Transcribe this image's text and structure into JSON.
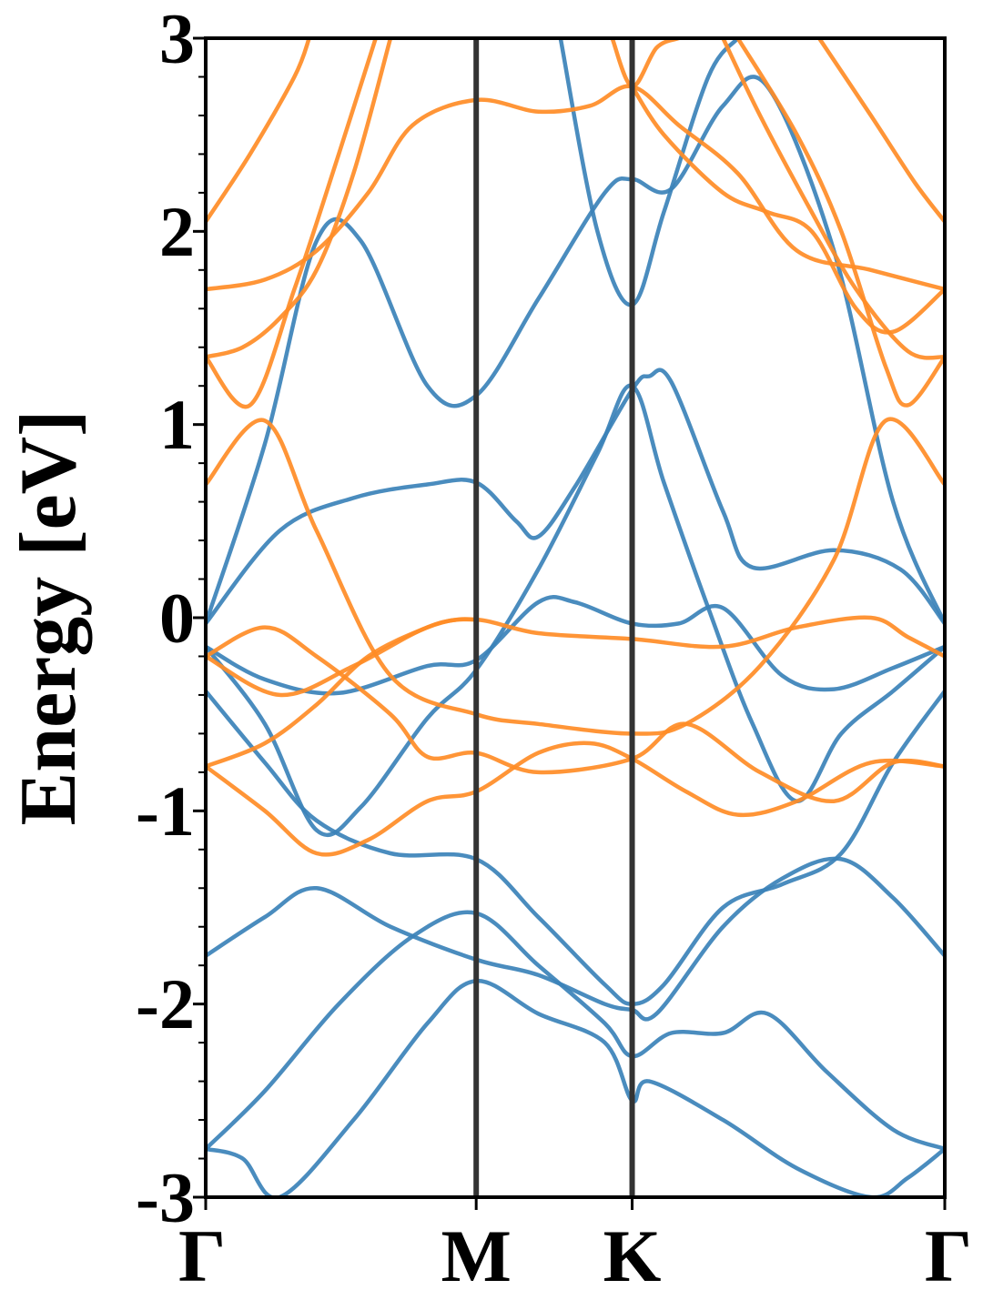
{
  "chart_data": {
    "type": "line",
    "title": "",
    "ylabel": "Energy [eV]",
    "xlabel": "",
    "ylim": [
      -3,
      3
    ],
    "yticks": [
      -3,
      -2,
      -1,
      0,
      1,
      2,
      3
    ],
    "ytick_labels": [
      "-3",
      "-2",
      "-1",
      "0",
      "1",
      "2",
      "3"
    ],
    "xlim": [
      0,
      1
    ],
    "high_symmetry_points": [
      {
        "label": "Γ",
        "x": 0.0
      },
      {
        "label": "M",
        "x": 0.366
      },
      {
        "label": "K",
        "x": 0.577
      },
      {
        "label": "Γ",
        "x": 1.0
      }
    ],
    "grid": false,
    "legend": "none",
    "colors": {
      "series_a": "#3b82b9",
      "series_b": "#ff8c26",
      "divider": "#333333"
    },
    "series": [
      {
        "color": "#3b82b9",
        "bands": [
          [
            [
              0,
              -0.03
            ],
            [
              0.08,
              0.9
            ],
            [
              0.15,
              1.95
            ],
            [
              0.21,
              1.95
            ],
            [
              0.3,
              1.2
            ],
            [
              0.366,
              1.15
            ],
            [
              0.45,
              1.65
            ],
            [
              0.54,
              2.2
            ],
            [
              0.577,
              2.27
            ],
            [
              0.63,
              2.22
            ],
            [
              0.7,
              2.65
            ],
            [
              0.76,
              2.75
            ],
            [
              0.85,
              1.9
            ],
            [
              0.93,
              0.6
            ],
            [
              1.0,
              -0.03
            ]
          ],
          [
            [
              0,
              -0.03
            ],
            [
              0.1,
              0.45
            ],
            [
              0.2,
              0.62
            ],
            [
              0.3,
              0.69
            ],
            [
              0.366,
              0.7
            ],
            [
              0.42,
              0.5
            ],
            [
              0.45,
              0.42
            ],
            [
              0.5,
              0.68
            ],
            [
              0.577,
              1.18
            ],
            [
              0.6,
              1.25
            ],
            [
              0.63,
              1.22
            ],
            [
              0.7,
              0.55
            ],
            [
              0.74,
              0.26
            ],
            [
              0.85,
              0.35
            ],
            [
              0.94,
              0.25
            ],
            [
              1.0,
              -0.03
            ]
          ],
          [
            [
              0,
              -0.15
            ],
            [
              0.08,
              -0.32
            ],
            [
              0.18,
              -0.39
            ],
            [
              0.3,
              -0.25
            ],
            [
              0.366,
              -0.22
            ],
            [
              0.45,
              0.08
            ],
            [
              0.5,
              0.08
            ],
            [
              0.577,
              -0.03
            ],
            [
              0.64,
              -0.03
            ],
            [
              0.7,
              0.05
            ],
            [
              0.78,
              -0.3
            ],
            [
              0.85,
              -0.37
            ],
            [
              0.93,
              -0.26
            ],
            [
              1.0,
              -0.15
            ]
          ],
          [
            [
              0,
              -0.15
            ],
            [
              0.08,
              -0.55
            ],
            [
              0.15,
              -1.1
            ],
            [
              0.21,
              -0.98
            ],
            [
              0.3,
              -0.52
            ],
            [
              0.366,
              -0.27
            ],
            [
              0.45,
              0.25
            ],
            [
              0.53,
              0.85
            ],
            [
              0.577,
              1.2
            ],
            [
              0.62,
              0.7
            ],
            [
              0.68,
              0.05
            ],
            [
              0.74,
              -0.55
            ],
            [
              0.8,
              -0.95
            ],
            [
              0.86,
              -0.6
            ],
            [
              0.93,
              -0.38
            ],
            [
              1.0,
              -0.15
            ]
          ],
          [
            [
              0,
              -0.38
            ],
            [
              0.08,
              -0.75
            ],
            [
              0.15,
              -1.05
            ],
            [
              0.25,
              -1.22
            ],
            [
              0.366,
              -1.25
            ],
            [
              0.45,
              -1.55
            ],
            [
              0.54,
              -1.9
            ],
            [
              0.577,
              -2.0
            ],
            [
              0.62,
              -1.9
            ],
            [
              0.7,
              -1.5
            ],
            [
              0.78,
              -1.38
            ],
            [
              0.86,
              -1.22
            ],
            [
              0.93,
              -0.75
            ],
            [
              1.0,
              -0.38
            ]
          ],
          [
            [
              0,
              -1.75
            ],
            [
              0.08,
              -1.55
            ],
            [
              0.15,
              -1.4
            ],
            [
              0.25,
              -1.6
            ],
            [
              0.366,
              -1.77
            ],
            [
              0.45,
              -1.85
            ],
            [
              0.54,
              -2.0
            ],
            [
              0.577,
              -2.03
            ],
            [
              0.61,
              -2.05
            ],
            [
              0.7,
              -1.6
            ],
            [
              0.78,
              -1.35
            ],
            [
              0.86,
              -1.25
            ],
            [
              0.93,
              -1.45
            ],
            [
              1.0,
              -1.75
            ]
          ],
          [
            [
              0,
              -2.75
            ],
            [
              0.08,
              -2.45
            ],
            [
              0.18,
              -2.0
            ],
            [
              0.28,
              -1.65
            ],
            [
              0.366,
              -1.53
            ],
            [
              0.45,
              -1.8
            ],
            [
              0.54,
              -2.1
            ],
            [
              0.577,
              -2.27
            ],
            [
              0.63,
              -2.15
            ],
            [
              0.7,
              -2.15
            ],
            [
              0.76,
              -2.05
            ],
            [
              0.84,
              -2.35
            ],
            [
              0.93,
              -2.65
            ],
            [
              1.0,
              -2.75
            ]
          ],
          [
            [
              0,
              -2.75
            ],
            [
              0.05,
              -2.8
            ],
            [
              0.1,
              -3.0
            ],
            [
              0.2,
              -2.6
            ],
            [
              0.3,
              -2.1
            ],
            [
              0.366,
              -1.88
            ],
            [
              0.45,
              -2.05
            ],
            [
              0.54,
              -2.2
            ],
            [
              0.577,
              -2.5
            ],
            [
              0.6,
              -2.4
            ],
            [
              0.7,
              -2.6
            ],
            [
              0.8,
              -2.85
            ],
            [
              0.9,
              -3.0
            ],
            [
              0.95,
              -2.9
            ],
            [
              1.0,
              -2.75
            ]
          ],
          [
            [
              0.48,
              3.0
            ],
            [
              0.53,
              2.0
            ],
            [
              0.577,
              1.62
            ],
            [
              0.62,
              2.1
            ],
            [
              0.68,
              2.8
            ],
            [
              0.72,
              3.0
            ]
          ]
        ]
      },
      {
        "color": "#ff8c26",
        "bands": [
          [
            [
              0,
              2.05
            ],
            [
              0.06,
              2.4
            ],
            [
              0.12,
              2.8
            ],
            [
              0.14,
              3.0
            ]
          ],
          [
            [
              0,
              1.7
            ],
            [
              0.08,
              1.75
            ],
            [
              0.15,
              1.9
            ],
            [
              0.22,
              2.2
            ],
            [
              0.28,
              2.55
            ],
            [
              0.366,
              2.68
            ],
            [
              0.45,
              2.62
            ],
            [
              0.52,
              2.65
            ],
            [
              0.577,
              2.75
            ],
            [
              0.64,
              2.55
            ],
            [
              0.72,
              2.3
            ],
            [
              0.8,
              1.9
            ],
            [
              0.9,
              1.8
            ],
            [
              1.0,
              1.7
            ]
          ],
          [
            [
              0,
              1.35
            ],
            [
              0.05,
              1.4
            ],
            [
              0.1,
              1.55
            ],
            [
              0.15,
              1.8
            ],
            [
              0.2,
              2.3
            ],
            [
              0.25,
              3.0
            ]
          ],
          [
            [
              0,
              1.35
            ],
            [
              0.06,
              1.1
            ],
            [
              0.12,
              1.7
            ],
            [
              0.18,
              2.4
            ],
            [
              0.23,
              3.0
            ]
          ],
          [
            [
              0,
              0.69
            ],
            [
              0.08,
              1.02
            ],
            [
              0.15,
              0.45
            ],
            [
              0.25,
              -0.3
            ],
            [
              0.366,
              -0.5
            ],
            [
              0.45,
              -0.55
            ],
            [
              0.577,
              -0.6
            ],
            [
              0.65,
              -0.55
            ],
            [
              0.75,
              -0.25
            ],
            [
              0.85,
              0.3
            ],
            [
              0.92,
              1.02
            ],
            [
              1.0,
              0.69
            ]
          ],
          [
            [
              0,
              -0.2
            ],
            [
              0.08,
              -0.05
            ],
            [
              0.15,
              -0.2
            ],
            [
              0.25,
              -0.5
            ],
            [
              0.3,
              -0.72
            ],
            [
              0.366,
              -0.7
            ],
            [
              0.45,
              -0.8
            ],
            [
              0.577,
              -0.73
            ],
            [
              0.65,
              -0.55
            ],
            [
              0.75,
              -0.8
            ],
            [
              0.85,
              -0.95
            ],
            [
              0.93,
              -0.75
            ],
            [
              1.0,
              -0.77
            ]
          ],
          [
            [
              0,
              -0.2
            ],
            [
              0.1,
              -0.4
            ],
            [
              0.2,
              -0.25
            ],
            [
              0.3,
              -0.05
            ],
            [
              0.366,
              -0.01
            ],
            [
              0.45,
              -0.08
            ],
            [
              0.577,
              -0.11
            ],
            [
              0.7,
              -0.15
            ],
            [
              0.8,
              -0.05
            ],
            [
              0.9,
              0.0
            ],
            [
              0.95,
              -0.1
            ],
            [
              1.0,
              -0.2
            ]
          ],
          [
            [
              0,
              -0.77
            ],
            [
              0.08,
              -1.0
            ],
            [
              0.15,
              -1.22
            ],
            [
              0.22,
              -1.15
            ],
            [
              0.3,
              -0.95
            ],
            [
              0.366,
              -0.9
            ],
            [
              0.45,
              -0.7
            ],
            [
              0.52,
              -0.65
            ],
            [
              0.577,
              -0.73
            ],
            [
              0.65,
              -0.9
            ],
            [
              0.72,
              -1.02
            ],
            [
              0.8,
              -0.95
            ],
            [
              0.9,
              -0.75
            ],
            [
              1.0,
              -0.77
            ]
          ],
          [
            [
              0,
              -0.77
            ],
            [
              0.08,
              -0.65
            ],
            [
              0.15,
              -0.45
            ],
            [
              0.22,
              -0.2
            ],
            [
              0.3,
              -0.05
            ],
            [
              0.34,
              -0.01
            ],
            [
              0.366,
              -0.01
            ]
          ],
          [
            [
              0.55,
              3.0
            ],
            [
              0.577,
              2.75
            ],
            [
              0.61,
              2.95
            ],
            [
              0.64,
              3.0
            ]
          ],
          [
            [
              0.577,
              2.75
            ],
            [
              0.62,
              2.5
            ],
            [
              0.7,
              2.2
            ],
            [
              0.76,
              2.1
            ],
            [
              0.82,
              2.0
            ],
            [
              0.88,
              1.6
            ],
            [
              0.93,
              1.48
            ],
            [
              1.0,
              1.7
            ]
          ],
          [
            [
              0.7,
              3.0
            ],
            [
              0.75,
              2.6
            ],
            [
              0.82,
              2.1
            ],
            [
              0.88,
              1.7
            ],
            [
              0.95,
              1.38
            ],
            [
              1.0,
              1.35
            ]
          ],
          [
            [
              0.72,
              3.0
            ],
            [
              0.8,
              2.5
            ],
            [
              0.86,
              2.0
            ],
            [
              0.92,
              1.3
            ],
            [
              0.95,
              1.1
            ],
            [
              1.0,
              1.35
            ]
          ],
          [
            [
              0.83,
              3.0
            ],
            [
              0.9,
              2.6
            ],
            [
              0.96,
              2.25
            ],
            [
              1.0,
              2.05
            ]
          ]
        ]
      }
    ]
  }
}
